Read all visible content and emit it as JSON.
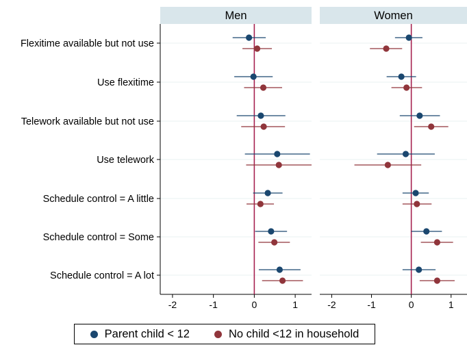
{
  "chart_data": {
    "type": "coefficient-plot",
    "panels": [
      "Men",
      "Women"
    ],
    "categories": [
      "Flexitime available but not use",
      "Use flexitime",
      "Telework available but not use",
      "Use telework",
      "Schedule control = A little",
      "Schedule control = Some",
      "Schedule control = A lot"
    ],
    "xlim": [
      -2.3,
      1.4
    ],
    "xticks": [
      "-2",
      "-1",
      "0",
      "1"
    ],
    "xtick_values": [
      -2,
      -1,
      0,
      1
    ],
    "reference_line": 0,
    "grid": true,
    "legend_position": "bottom",
    "series": [
      {
        "name": "Parent child < 12",
        "color": "#1a476f",
        "panels": {
          "Men": [
            {
              "est": -0.13,
              "lo": -0.53,
              "hi": 0.28
            },
            {
              "est": -0.02,
              "lo": -0.49,
              "hi": 0.45
            },
            {
              "est": 0.16,
              "lo": -0.43,
              "hi": 0.76
            },
            {
              "est": 0.56,
              "lo": -0.23,
              "hi": 1.36
            },
            {
              "est": 0.33,
              "lo": -0.03,
              "hi": 0.69
            },
            {
              "est": 0.41,
              "lo": 0.02,
              "hi": 0.8
            },
            {
              "est": 0.62,
              "lo": 0.11,
              "hi": 1.13
            }
          ],
          "Women": [
            {
              "est": -0.06,
              "lo": -0.41,
              "hi": 0.28
            },
            {
              "est": -0.25,
              "lo": -0.62,
              "hi": 0.12
            },
            {
              "est": 0.21,
              "lo": -0.29,
              "hi": 0.72
            },
            {
              "est": -0.14,
              "lo": -0.86,
              "hi": 0.59
            },
            {
              "est": 0.11,
              "lo": -0.22,
              "hi": 0.44
            },
            {
              "est": 0.38,
              "lo": 0.0,
              "hi": 0.77
            },
            {
              "est": 0.19,
              "lo": -0.22,
              "hi": 0.61
            }
          ]
        }
      },
      {
        "name": "No child <12 in household",
        "color": "#90353b",
        "panels": {
          "Men": [
            {
              "est": 0.07,
              "lo": -0.29,
              "hi": 0.43
            },
            {
              "est": 0.22,
              "lo": -0.25,
              "hi": 0.68
            },
            {
              "est": 0.23,
              "lo": -0.32,
              "hi": 0.75
            },
            {
              "est": 0.6,
              "lo": -0.2,
              "hi": 1.4
            },
            {
              "est": 0.15,
              "lo": -0.19,
              "hi": 0.48
            },
            {
              "est": 0.49,
              "lo": 0.1,
              "hi": 0.87
            },
            {
              "est": 0.69,
              "lo": 0.19,
              "hi": 1.19
            }
          ],
          "Women": [
            {
              "est": -0.63,
              "lo": -1.04,
              "hi": -0.23
            },
            {
              "est": -0.12,
              "lo": -0.5,
              "hi": 0.27
            },
            {
              "est": 0.5,
              "lo": 0.07,
              "hi": 0.93
            },
            {
              "est": -0.59,
              "lo": -1.43,
              "hi": 0.25
            },
            {
              "est": 0.14,
              "lo": -0.22,
              "hi": 0.51
            },
            {
              "est": 0.65,
              "lo": 0.24,
              "hi": 1.05
            },
            {
              "est": 0.65,
              "lo": 0.21,
              "hi": 1.09
            }
          ]
        }
      }
    ]
  },
  "legend": {
    "parent_label": "Parent child < 12",
    "nochild_label": "No child <12 in household"
  },
  "colors": {
    "panel_header_bg": "#d9e6eb",
    "reference_line": "#a62150",
    "grid": "#eaf0f2",
    "parent": "#1a476f",
    "nochild": "#90353b"
  }
}
